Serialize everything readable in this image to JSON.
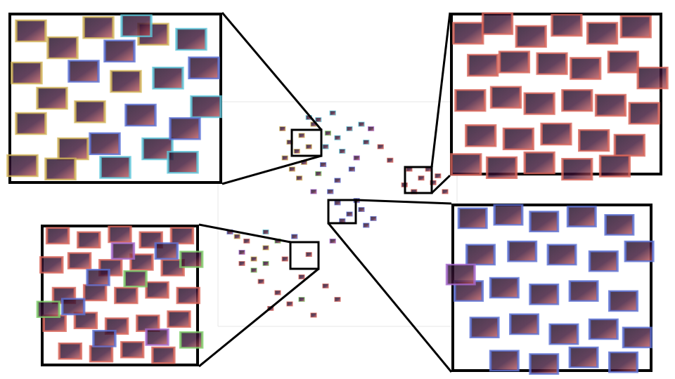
{
  "chart_data": [
    {
      "type": "scatter",
      "tick_labels": false,
      "marker": "rect",
      "xlim": [
        0,
        100
      ],
      "ylim": [
        0,
        100
      ],
      "series": [
        {
          "color": "#d4b85a",
          "values": [
            [
              30,
              82
            ],
            [
              33,
              78
            ],
            [
              28,
              75
            ],
            [
              35,
              85
            ],
            [
              31,
              70
            ],
            [
              38,
              80
            ],
            [
              27,
              88
            ],
            [
              36,
              73
            ],
            [
              40,
              90
            ],
            [
              34,
              66
            ],
            [
              8,
              40
            ],
            [
              15,
              30
            ],
            [
              20,
              35
            ]
          ]
        },
        {
          "color": "#5ec8dc",
          "values": [
            [
              42,
              92
            ],
            [
              48,
              95
            ],
            [
              55,
              88
            ],
            [
              60,
              90
            ],
            [
              50,
              84
            ],
            [
              45,
              80
            ],
            [
              62,
              82
            ],
            [
              38,
              93
            ],
            [
              52,
              78
            ],
            [
              20,
              42
            ]
          ]
        },
        {
          "color": "#d9665a",
          "values": [
            [
              80,
              70
            ],
            [
              85,
              66
            ],
            [
              90,
              64
            ],
            [
              95,
              60
            ],
            [
              78,
              63
            ],
            [
              88,
              70
            ],
            [
              82,
              60
            ],
            [
              92,
              67
            ],
            [
              72,
              74
            ],
            [
              68,
              80
            ],
            [
              10,
              28
            ],
            [
              18,
              20
            ],
            [
              25,
              15
            ],
            [
              30,
              10
            ],
            [
              35,
              22
            ],
            [
              40,
              5
            ],
            [
              12,
              38
            ],
            [
              28,
              30
            ],
            [
              45,
              18
            ],
            [
              50,
              12
            ],
            [
              22,
              8
            ],
            [
              38,
              32
            ]
          ]
        },
        {
          "color": "#5b72d6",
          "values": [
            [
              50,
              55
            ],
            [
              55,
              50
            ],
            [
              60,
              52
            ],
            [
              65,
              48
            ],
            [
              52,
              47
            ],
            [
              58,
              56
            ],
            [
              62,
              45
            ],
            [
              47,
              60
            ],
            [
              44,
              72
            ],
            [
              56,
              70
            ],
            [
              50,
              65
            ],
            [
              5,
              42
            ],
            [
              32,
              40
            ]
          ]
        },
        {
          "color": "#7fcf6a",
          "values": [
            [
              42,
              68
            ],
            [
              46,
              86
            ],
            [
              15,
              25
            ],
            [
              25,
              38
            ],
            [
              35,
              12
            ],
            [
              20,
              28
            ]
          ]
        },
        {
          "color": "#a86ad0",
          "values": [
            [
              58,
              75
            ],
            [
              64,
              88
            ],
            [
              40,
              60
            ],
            [
              48,
              38
            ],
            [
              10,
              33
            ]
          ]
        }
      ]
    },
    {
      "type": "scatter",
      "tick_labels": false,
      "marker": "rect",
      "xlim": [
        0,
        10
      ],
      "ylim": [
        0,
        10
      ],
      "series": [
        {
          "color": "#d4b85a",
          "values": [
            [
              1,
              9
            ],
            [
              2.5,
              8
            ],
            [
              0.8,
              6.5
            ],
            [
              2,
              5
            ],
            [
              1,
              3.5
            ],
            [
              3,
              2
            ],
            [
              0.6,
              1
            ],
            [
              4.2,
              9.2
            ],
            [
              5.5,
              6
            ],
            [
              3.8,
              4.2
            ],
            [
              6.8,
              8.8
            ],
            [
              2.4,
              0.8
            ]
          ]
        },
        {
          "color": "#5ec8dc",
          "values": [
            [
              6,
              9.3
            ],
            [
              8.6,
              8.5
            ],
            [
              7.5,
              6.2
            ],
            [
              9.3,
              4.5
            ],
            [
              7,
              2
            ],
            [
              5,
              0.9
            ],
            [
              8.2,
              1.2
            ]
          ]
        },
        {
          "color": "#5b72d6",
          "values": [
            [
              3.5,
              6.6
            ],
            [
              5.2,
              7.8
            ],
            [
              6.2,
              4
            ],
            [
              4.5,
              2.3
            ],
            [
              9.2,
              6.8
            ],
            [
              8.3,
              3.2
            ]
          ]
        }
      ]
    },
    {
      "type": "scatter",
      "tick_labels": false,
      "marker": "rect",
      "xlim": [
        0,
        10
      ],
      "ylim": [
        0,
        10
      ],
      "series": [
        {
          "color": "#d9665a",
          "values": [
            [
              0.8,
              8.8
            ],
            [
              2.2,
              9.4
            ],
            [
              3.8,
              8.6
            ],
            [
              5.5,
              9.3
            ],
            [
              7.2,
              8.8
            ],
            [
              8.8,
              9.2
            ],
            [
              1.5,
              6.8
            ],
            [
              3,
              7
            ],
            [
              4.8,
              6.9
            ],
            [
              6.4,
              6.6
            ],
            [
              8.2,
              7
            ],
            [
              9.6,
              6
            ],
            [
              0.9,
              4.6
            ],
            [
              2.6,
              4.8
            ],
            [
              4.2,
              4.4
            ],
            [
              6,
              4.6
            ],
            [
              7.6,
              4.3
            ],
            [
              9.2,
              3.8
            ],
            [
              1.4,
              2.4
            ],
            [
              3.2,
              2.2
            ],
            [
              5,
              2.5
            ],
            [
              6.8,
              2.1
            ],
            [
              8.5,
              1.8
            ],
            [
              0.7,
              0.6
            ],
            [
              2.4,
              0.4
            ],
            [
              4.2,
              0.7
            ],
            [
              6,
              0.3
            ],
            [
              7.8,
              0.5
            ]
          ]
        }
      ]
    },
    {
      "type": "scatter",
      "tick_labels": false,
      "marker": "rect",
      "xlim": [
        0,
        10
      ],
      "ylim": [
        0,
        10
      ],
      "series": [
        {
          "color": "#d9665a",
          "values": [
            [
              1,
              9.3
            ],
            [
              3,
              9
            ],
            [
              5,
              9.4
            ],
            [
              7,
              9
            ],
            [
              9,
              9.3
            ],
            [
              0.6,
              7.2
            ],
            [
              2.4,
              7.5
            ],
            [
              4.4,
              7
            ],
            [
              6.4,
              7.4
            ],
            [
              8.4,
              7
            ],
            [
              1.4,
              5
            ],
            [
              3.4,
              5.2
            ],
            [
              5.4,
              5
            ],
            [
              7.4,
              5.4
            ],
            [
              9.4,
              5
            ],
            [
              0.8,
              3
            ],
            [
              2.8,
              3.2
            ],
            [
              4.8,
              2.8
            ],
            [
              6.8,
              3
            ],
            [
              8.8,
              3.3
            ],
            [
              1.8,
              1
            ],
            [
              3.8,
              0.8
            ],
            [
              5.8,
              1.1
            ],
            [
              7.8,
              0.7
            ]
          ]
        },
        {
          "color": "#7fcf6a",
          "values": [
            [
              9.6,
              7.6
            ],
            [
              0.4,
              4
            ],
            [
              6,
              6.2
            ],
            [
              9.6,
              1.8
            ]
          ]
        },
        {
          "color": "#5b72d6",
          "values": [
            [
              2,
              4.2
            ],
            [
              4,
              1.9
            ],
            [
              8,
              8.2
            ],
            [
              3.6,
              6.3
            ]
          ]
        },
        {
          "color": "#a86ad0",
          "values": [
            [
              5.2,
              8.2
            ],
            [
              7.4,
              2
            ]
          ]
        }
      ]
    },
    {
      "type": "scatter",
      "tick_labels": false,
      "marker": "rect",
      "xlim": [
        0,
        10
      ],
      "ylim": [
        0,
        10
      ],
      "series": [
        {
          "color": "#5b72d6",
          "values": [
            [
              1,
              9.2
            ],
            [
              2.8,
              9.4
            ],
            [
              4.6,
              9
            ],
            [
              6.5,
              9.3
            ],
            [
              8.4,
              8.8
            ],
            [
              1.4,
              7
            ],
            [
              3.5,
              7.2
            ],
            [
              5.5,
              7
            ],
            [
              7.6,
              6.6
            ],
            [
              9.4,
              7.2
            ],
            [
              0.8,
              4.8
            ],
            [
              2.6,
              5
            ],
            [
              4.6,
              4.6
            ],
            [
              6.6,
              4.8
            ],
            [
              8.6,
              4.2
            ],
            [
              1.6,
              2.6
            ],
            [
              3.6,
              2.8
            ],
            [
              5.6,
              2.2
            ],
            [
              7.6,
              2.5
            ],
            [
              9.3,
              2
            ],
            [
              2.6,
              0.6
            ],
            [
              4.6,
              0.4
            ],
            [
              6.6,
              0.8
            ],
            [
              8.6,
              0.5
            ]
          ]
        },
        {
          "color": "#a86ad0",
          "values": [
            [
              0.4,
              5.8
            ]
          ]
        }
      ]
    }
  ]
}
